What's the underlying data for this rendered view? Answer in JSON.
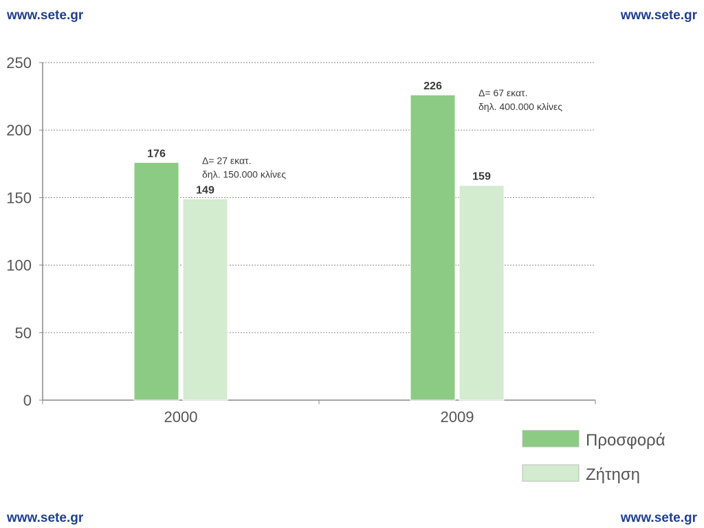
{
  "header": {
    "site_left": "www.sete.gr",
    "site_right": "www.sete.gr"
  },
  "footer": {
    "site_left": "www.sete.gr",
    "site_right": "www.sete.gr"
  },
  "chart_data": {
    "type": "bar",
    "categories": [
      "2000",
      "2009"
    ],
    "series": [
      {
        "name": "Προσφορά",
        "values": [
          176,
          226
        ],
        "color": "#8ccb84"
      },
      {
        "name": "Ζήτηση",
        "values": [
          149,
          159
        ],
        "color": "#d3ebcf"
      }
    ],
    "ylim": [
      0,
      250
    ],
    "yticks": [
      0,
      50,
      100,
      150,
      200,
      250
    ],
    "grid": true,
    "legend": "bottom-right",
    "annotations": [
      {
        "category": "2000",
        "line1": "Δ= 27 εκατ.",
        "line2": "δηλ. 150.000 κλίνες"
      },
      {
        "category": "2009",
        "line1": "Δ= 67 εκατ.",
        "line2": "δηλ. 400.000 κλίνες"
      }
    ]
  }
}
